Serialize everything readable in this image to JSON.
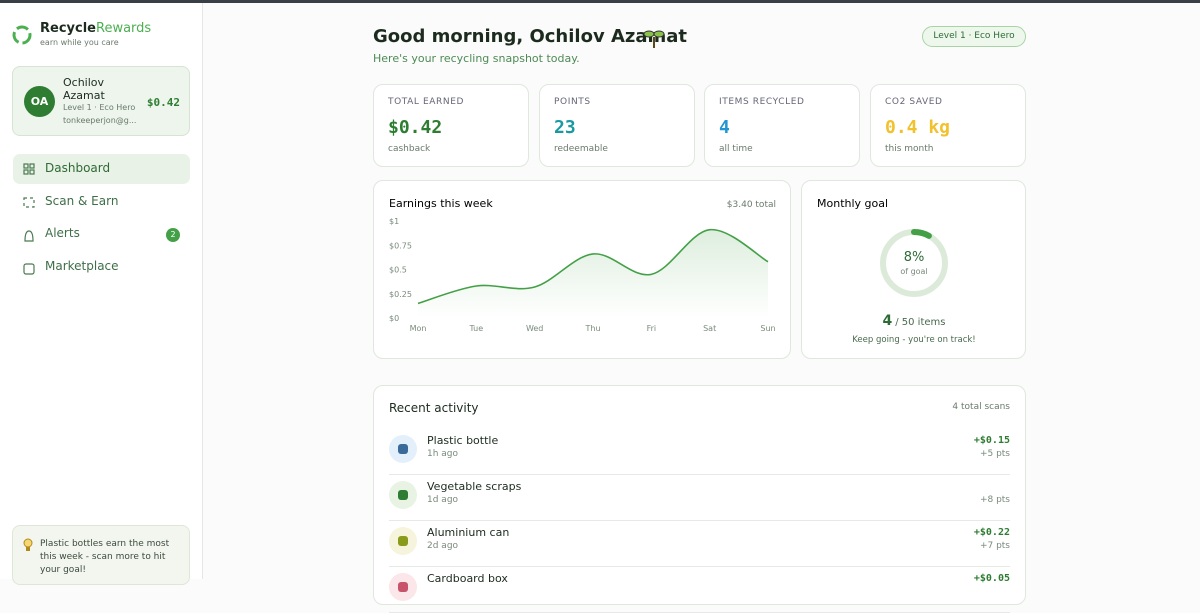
{
  "brand": {
    "name_a": "Recycle",
    "name_b": "Rewards",
    "tagline": "earn while you care"
  },
  "profile": {
    "initials": "OA",
    "name": "Ochilov Azamat",
    "level": "Level 1 · Eco Hero",
    "email": "tonkeeperjon@g...",
    "balance": "$0.42"
  },
  "nav": [
    {
      "label": "Dashboard"
    },
    {
      "label": "Scan & Earn"
    },
    {
      "label": "Alerts",
      "badge": "2"
    },
    {
      "label": "Marketplace"
    }
  ],
  "tip": "Plastic bottles earn the most this week - scan more to hit your goal!",
  "header": {
    "greeting": "Good morning, Ochilov Azamat",
    "subtitle": "Here's your recycling snapshot today.",
    "level_badge": "Level 1 · Eco Hero"
  },
  "stats": [
    {
      "label": "TOTAL EARNED",
      "value": "$0.42",
      "note": "cashback",
      "color": "#2e7d32"
    },
    {
      "label": "POINTS",
      "value": "23",
      "note": "redeemable",
      "color": "#1a9aa0"
    },
    {
      "label": "ITEMS RECYCLED",
      "value": "4",
      "note": "all time",
      "color": "#2196d3"
    },
    {
      "label": "CO2 SAVED",
      "value": "0.4 kg",
      "note": "this month",
      "color": "#f2c12e"
    }
  ],
  "chart_data": [
    {
      "type": "line",
      "title": "Earnings this week",
      "annotation": "$3.40 total",
      "categories": [
        "Mon",
        "Tue",
        "Wed",
        "Thu",
        "Fri",
        "Sat",
        "Sun"
      ],
      "values": [
        0.15,
        0.33,
        0.32,
        0.66,
        0.45,
        0.91,
        0.58
      ],
      "color": "#43a047",
      "ylim": [
        0,
        1
      ],
      "yticks": [
        {
          "value": 0,
          "label": "$0"
        },
        {
          "value": 0.25,
          "label": "$0.25"
        },
        {
          "value": 0.5,
          "label": "$0.5"
        },
        {
          "value": 0.75,
          "label": "$0.75"
        },
        {
          "value": 1,
          "label": "$1"
        }
      ]
    },
    {
      "type": "donut",
      "title": "Monthly goal",
      "values": [
        8
      ],
      "value_labels": [
        "8%"
      ],
      "ylim": [
        0,
        100
      ],
      "color": "#43a047",
      "caption": "of goal",
      "count": "4",
      "count_label": "/ 50 items",
      "note": "Keep going - you're on track!"
    }
  ],
  "activity": {
    "title": "Recent activity",
    "count": "4 total scans",
    "items": [
      {
        "name": "Plastic bottle",
        "time": "1h ago",
        "amount": "+$0.15",
        "points": "+5 pts"
      },
      {
        "name": "Vegetable scraps",
        "time": "1d ago",
        "points": "+8 pts"
      },
      {
        "name": "Aluminium can",
        "time": "2d ago",
        "amount": "+$0.22",
        "points": "+7 pts"
      },
      {
        "name": "Cardboard box",
        "amount": "+$0.05"
      }
    ]
  }
}
